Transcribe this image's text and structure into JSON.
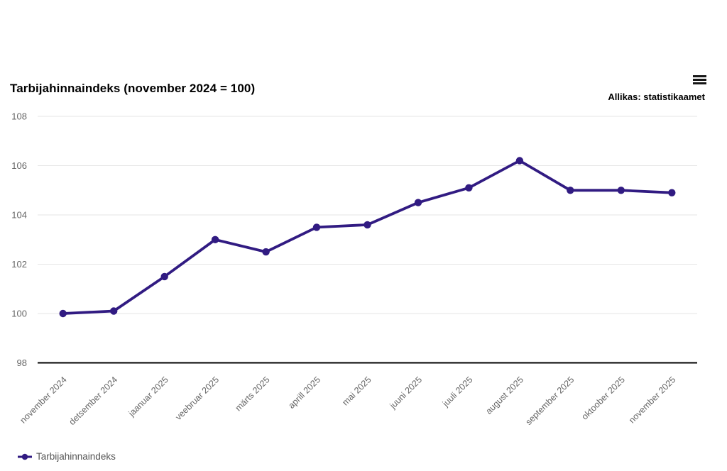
{
  "header": {
    "title": "Tarbijahinnaindeks (november 2024 = 100)",
    "source": "Allikas: statistikaamet"
  },
  "legend": {
    "label": "Tarbijahinnaindeks"
  },
  "chart_data": {
    "type": "line",
    "title": "Tarbijahinnaindeks (november 2024 = 100)",
    "source": "Allikas: statistikaamet",
    "categories": [
      "november 2024",
      "detsember 2024",
      "jaanuar 2025",
      "veebruar 2025",
      "märts 2025",
      "aprill 2025",
      "mai 2025",
      "juuni 2025",
      "juuli 2025",
      "august 2025",
      "september 2025",
      "oktoober 2025",
      "november 2025"
    ],
    "series": [
      {
        "name": "Tarbijahinnaindeks",
        "values": [
          100.0,
          100.1,
          101.5,
          103.0,
          102.5,
          103.5,
          103.6,
          104.5,
          105.1,
          106.2,
          105.0,
          105.0,
          104.9
        ]
      }
    ],
    "xlabel": "",
    "ylabel": "",
    "ylim": [
      98,
      108
    ],
    "yticks": [
      98,
      100,
      102,
      104,
      106,
      108
    ],
    "grid": true,
    "x_label_rotation_deg": -45,
    "legend_position": "bottom-left",
    "colors": {
      "series": "#311b82",
      "grid": "#e6e6e6",
      "axis_line": "#000000",
      "tick_label": "#666666",
      "title": "#000000",
      "legend_text": "#555555"
    }
  }
}
